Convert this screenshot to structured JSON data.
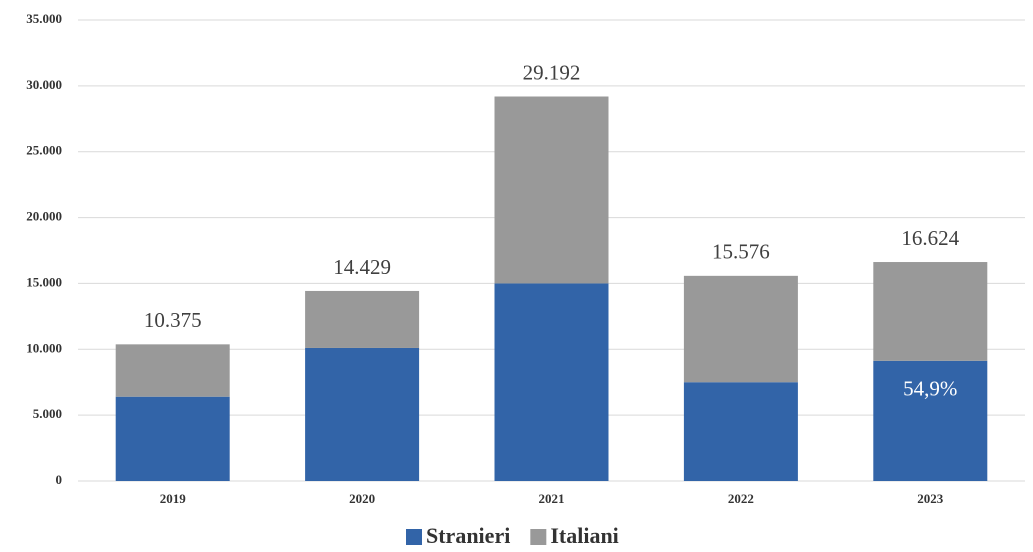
{
  "chart_data": {
    "type": "stacked_bar",
    "categories": [
      "2019",
      "2020",
      "2021",
      "2022",
      "2023"
    ],
    "series": [
      {
        "name": "Stranieri",
        "color": "#3264a8",
        "values": [
          6400,
          10100,
          15000,
          7500,
          9126
        ]
      },
      {
        "name": "Italiani",
        "color": "#999999",
        "values": [
          3975,
          4329,
          14192,
          8076,
          7498
        ]
      }
    ],
    "totals": {
      "values": [
        10375,
        14429,
        29192,
        15576,
        16624
      ],
      "value_labels": [
        "10.375",
        "14.429",
        "29.192",
        "15.576",
        "16.624"
      ]
    },
    "annotations": [
      {
        "text": "54,9%"
      }
    ],
    "ylim": [
      0,
      35000
    ],
    "yticks": [
      0,
      {
        "value": 5000,
        "label": "5.000"
      },
      {
        "value": 10000,
        "label": "10.000"
      },
      {
        "value": 15000,
        "label": "15.000"
      },
      {
        "value": 20000,
        "label": "20.000"
      },
      {
        "value": 25000,
        "label": "25.000"
      },
      {
        "value": 30000,
        "label": "30.000"
      },
      {
        "value": 35000,
        "label": "35.000"
      }
    ],
    "grid": true,
    "legend": "bottom"
  }
}
